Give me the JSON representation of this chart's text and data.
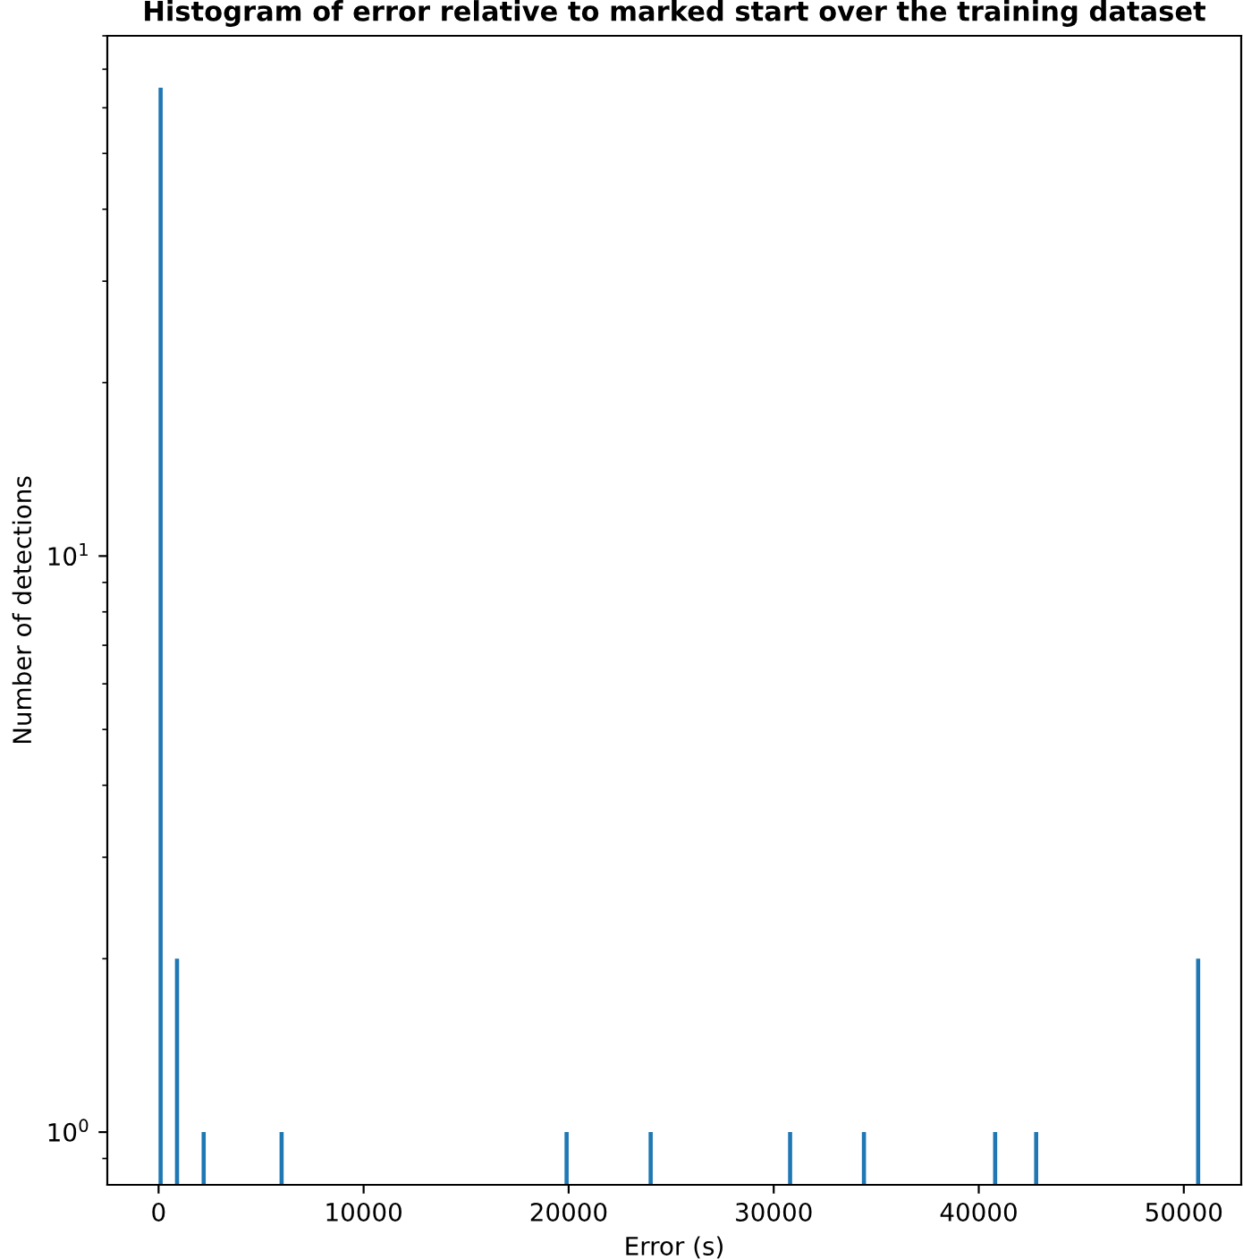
{
  "chart_data": {
    "type": "histogram",
    "title": "Histogram of error relative to marked start over the training dataset",
    "xlabel": "Error (s)",
    "ylabel": "Number of detections",
    "bins": [
      0,
      200,
      800,
      1000,
      2100,
      2300,
      5900,
      6100,
      19800,
      20000,
      23900,
      24100,
      30700,
      30900,
      34300,
      34500,
      40700,
      40900,
      42700,
      42900,
      50600,
      50800
    ],
    "values": [
      65,
      null,
      2,
      null,
      1,
      null,
      1,
      null,
      1,
      null,
      1,
      null,
      1,
      null,
      1,
      null,
      1,
      null,
      1,
      null,
      2
    ],
    "color": "#1f77b4",
    "log": "y",
    "xlim": [
      -2500,
      52800
    ],
    "xticks": [
      0,
      10000,
      20000,
      30000,
      40000,
      50000
    ],
    "ylim": [
      0.81,
      80
    ],
    "yticks": [
      {
        "value": 1,
        "label": "10$^{0}$"
      },
      {
        "value": 10,
        "label": "10$^{1}$"
      }
    ],
    "grid": false,
    "legend": false
  }
}
